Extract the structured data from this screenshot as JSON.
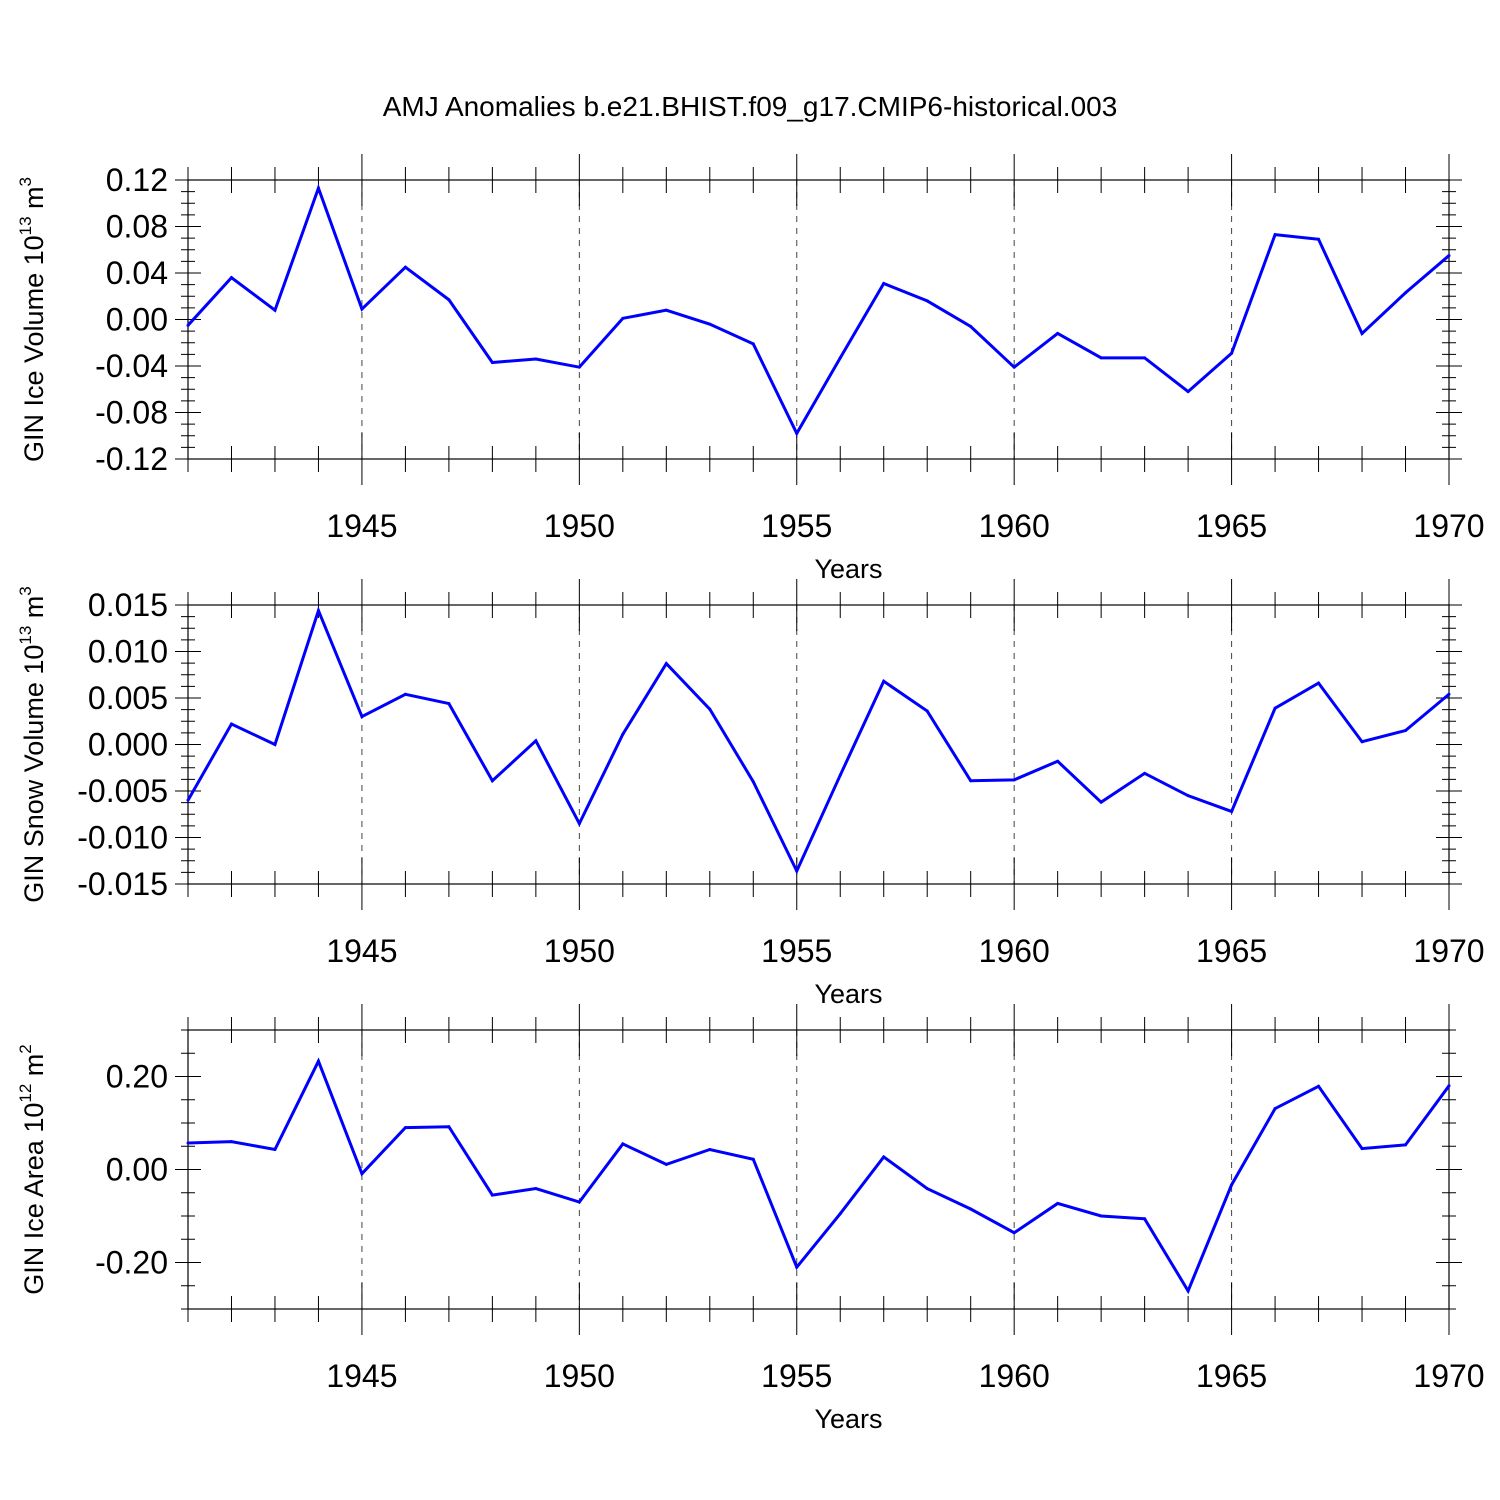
{
  "title": "AMJ Anomalies b.e21.BHIST.f09_g17.CMIP6-historical.003",
  "line_color": "#0000ff",
  "chart_data": [
    {
      "type": "line",
      "xlabel": "Years",
      "ylabel": "GIN Ice Volume 10",
      "ylabel_sup1": "13",
      "ylabel_mid": " m",
      "ylabel_sup2": "3",
      "xlim": [
        1941,
        1970
      ],
      "ylim": [
        -0.12,
        0.12
      ],
      "y_ticks": [
        "-0.12",
        "-0.08",
        "-0.04",
        "0.00",
        "0.04",
        "0.08",
        "0.12"
      ],
      "x_ticks": [
        "1945",
        "1950",
        "1955",
        "1960",
        "1965",
        "1970"
      ],
      "grid": "vertical dashed at major x ticks",
      "x": [
        1941,
        1942,
        1943,
        1944,
        1945,
        1946,
        1947,
        1948,
        1949,
        1950,
        1951,
        1952,
        1953,
        1954,
        1955,
        1956,
        1957,
        1958,
        1959,
        1960,
        1961,
        1962,
        1963,
        1964,
        1965,
        1966,
        1967,
        1968,
        1969,
        1970
      ],
      "series": [
        {
          "values": [
            -0.005,
            0.036,
            0.008,
            0.113,
            0.009,
            0.045,
            0.017,
            -0.037,
            -0.034,
            -0.041,
            0.001,
            0.008,
            -0.004,
            -0.021,
            -0.098,
            -0.033,
            0.031,
            0.016,
            -0.006,
            -0.041,
            -0.012,
            -0.033,
            -0.033,
            -0.062,
            -0.029,
            0.073,
            0.069,
            -0.012,
            0.023,
            0.055
          ]
        }
      ]
    },
    {
      "type": "line",
      "xlabel": "Years",
      "ylabel": "GIN Snow Volume 10",
      "ylabel_sup1": "13",
      "ylabel_mid": " m",
      "ylabel_sup2": "3",
      "xlim": [
        1941,
        1970
      ],
      "ylim": [
        -0.015,
        0.015
      ],
      "y_ticks": [
        "-0.015",
        "-0.010",
        "-0.005",
        "0.000",
        "0.005",
        "0.010",
        "0.015"
      ],
      "x_ticks": [
        "1945",
        "1950",
        "1955",
        "1960",
        "1965",
        "1970"
      ],
      "grid": "vertical dashed at major x ticks",
      "x": [
        1941,
        1942,
        1943,
        1944,
        1945,
        1946,
        1947,
        1948,
        1949,
        1950,
        1951,
        1952,
        1953,
        1954,
        1955,
        1956,
        1957,
        1958,
        1959,
        1960,
        1961,
        1962,
        1963,
        1964,
        1965,
        1966,
        1967,
        1968,
        1969,
        1970
      ],
      "series": [
        {
          "values": [
            -0.006,
            0.0022,
            0.0,
            0.0144,
            0.003,
            0.0054,
            0.0044,
            -0.0039,
            0.0004,
            -0.0085,
            0.0011,
            0.0087,
            0.0038,
            -0.004,
            -0.0136,
            -0.0033,
            0.0068,
            0.0036,
            -0.0039,
            -0.0038,
            -0.0018,
            -0.0062,
            -0.0031,
            -0.0055,
            -0.0072,
            0.0039,
            0.0066,
            0.0003,
            0.0015,
            0.0054
          ]
        }
      ]
    },
    {
      "type": "line",
      "xlabel": "Years",
      "ylabel": "GIN Ice Area 10",
      "ylabel_sup1": "12",
      "ylabel_mid": " m",
      "ylabel_sup2": "2",
      "xlim": [
        1941,
        1970
      ],
      "ylim": [
        -0.3,
        0.3
      ],
      "y_ticks": [
        "-0.20",
        "0.00",
        "0.20"
      ],
      "x_ticks": [
        "1945",
        "1950",
        "1955",
        "1960",
        "1965",
        "1970"
      ],
      "grid": "vertical dashed at major x ticks",
      "x": [
        1941,
        1942,
        1943,
        1944,
        1945,
        1946,
        1947,
        1948,
        1949,
        1950,
        1951,
        1952,
        1953,
        1954,
        1955,
        1956,
        1957,
        1958,
        1959,
        1960,
        1961,
        1962,
        1963,
        1964,
        1965,
        1966,
        1967,
        1968,
        1969,
        1970
      ],
      "series": [
        {
          "values": [
            0.057,
            0.06,
            0.043,
            0.233,
            -0.009,
            0.09,
            0.092,
            -0.055,
            -0.041,
            -0.07,
            0.055,
            0.011,
            0.043,
            0.022,
            -0.21,
            -0.095,
            0.027,
            -0.041,
            -0.085,
            -0.136,
            -0.073,
            -0.1,
            -0.106,
            -0.261,
            -0.033,
            0.131,
            0.179,
            0.045,
            0.053,
            0.18
          ]
        }
      ]
    }
  ]
}
